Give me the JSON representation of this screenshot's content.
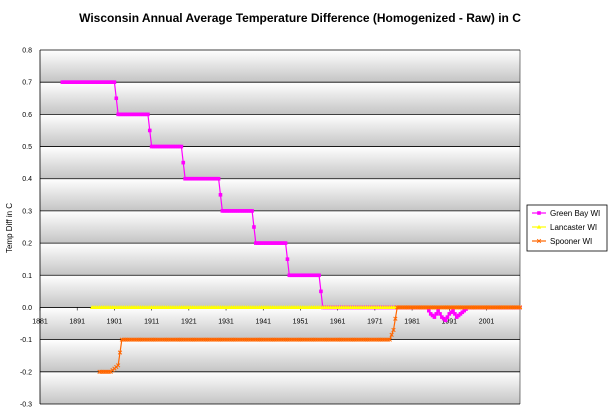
{
  "chart_data": {
    "type": "line",
    "title": "Wisconsin Annual Average Temperature Difference (Homogenized - Raw) in C",
    "xlabel": "",
    "ylabel": "Temp Diff in C",
    "xlim": [
      1881,
      2010
    ],
    "ylim": [
      -0.3,
      0.8
    ],
    "x_ticks": [
      "1881",
      "1891",
      "1901",
      "1911",
      "1921",
      "1931",
      "1941",
      "1951",
      "1961",
      "1971",
      "1981",
      "1991",
      "2001"
    ],
    "y_ticks": [
      "0.8",
      "0.7",
      "0.6",
      "0.5",
      "0.4",
      "0.3",
      "0.2",
      "0.1",
      "0.0",
      "-0.1",
      "-0.2",
      "-0.3"
    ],
    "grid": true,
    "legend_position": "right",
    "series": [
      {
        "name": "Green Bay WI",
        "color": "#ff00ff",
        "marker": "square",
        "points": [
          [
            1887,
            0.7
          ],
          [
            1891,
            0.7
          ],
          [
            1895,
            0.7
          ],
          [
            1899,
            0.7
          ],
          [
            1901,
            0.7
          ],
          [
            1902,
            0.6
          ],
          [
            1905,
            0.6
          ],
          [
            1908,
            0.6
          ],
          [
            1910,
            0.6
          ],
          [
            1911,
            0.5
          ],
          [
            1914,
            0.5
          ],
          [
            1917,
            0.5
          ],
          [
            1919,
            0.5
          ],
          [
            1920,
            0.4
          ],
          [
            1923,
            0.4
          ],
          [
            1926,
            0.4
          ],
          [
            1929,
            0.4
          ],
          [
            1930,
            0.3
          ],
          [
            1933,
            0.3
          ],
          [
            1936,
            0.3
          ],
          [
            1938,
            0.3
          ],
          [
            1939,
            0.2
          ],
          [
            1942,
            0.2
          ],
          [
            1945,
            0.2
          ],
          [
            1947,
            0.2
          ],
          [
            1948,
            0.1
          ],
          [
            1951,
            0.1
          ],
          [
            1954,
            0.1
          ],
          [
            1956,
            0.1
          ],
          [
            1957,
            0.0
          ],
          [
            1965,
            0.0
          ],
          [
            1975,
            0.0
          ],
          [
            1985,
            0.0
          ],
          [
            1986,
            -0.02
          ],
          [
            1987,
            -0.03
          ],
          [
            1988,
            -0.01
          ],
          [
            1989,
            -0.03
          ],
          [
            1990,
            -0.04
          ],
          [
            1991,
            -0.02
          ],
          [
            1992,
            -0.01
          ],
          [
            1993,
            -0.03
          ],
          [
            1994,
            -0.02
          ],
          [
            1995,
            -0.01
          ],
          [
            1996,
            0.0
          ],
          [
            2000,
            0.0
          ],
          [
            2010,
            0.0
          ]
        ]
      },
      {
        "name": "Lancaster WI",
        "color": "#ffff00",
        "marker": "triangle",
        "points": [
          [
            1895,
            0.0
          ],
          [
            1910,
            0.0
          ],
          [
            1930,
            0.0
          ],
          [
            1950,
            0.0
          ],
          [
            1970,
            0.0
          ],
          [
            1990,
            0.0
          ],
          [
            2010,
            0.0
          ]
        ]
      },
      {
        "name": "Spooner WI",
        "color": "#ff6600",
        "marker": "x",
        "points": [
          [
            1897,
            -0.2
          ],
          [
            1900,
            -0.2
          ],
          [
            1902,
            -0.18
          ],
          [
            1903,
            -0.1
          ],
          [
            1910,
            -0.1
          ],
          [
            1920,
            -0.1
          ],
          [
            1930,
            -0.1
          ],
          [
            1940,
            -0.1
          ],
          [
            1950,
            -0.1
          ],
          [
            1960,
            -0.1
          ],
          [
            1975,
            -0.1
          ],
          [
            1976,
            -0.07
          ],
          [
            1977,
            0.0
          ],
          [
            1985,
            0.0
          ],
          [
            1990,
            0.0
          ],
          [
            2000,
            0.0
          ],
          [
            2010,
            0.0
          ]
        ]
      }
    ]
  }
}
